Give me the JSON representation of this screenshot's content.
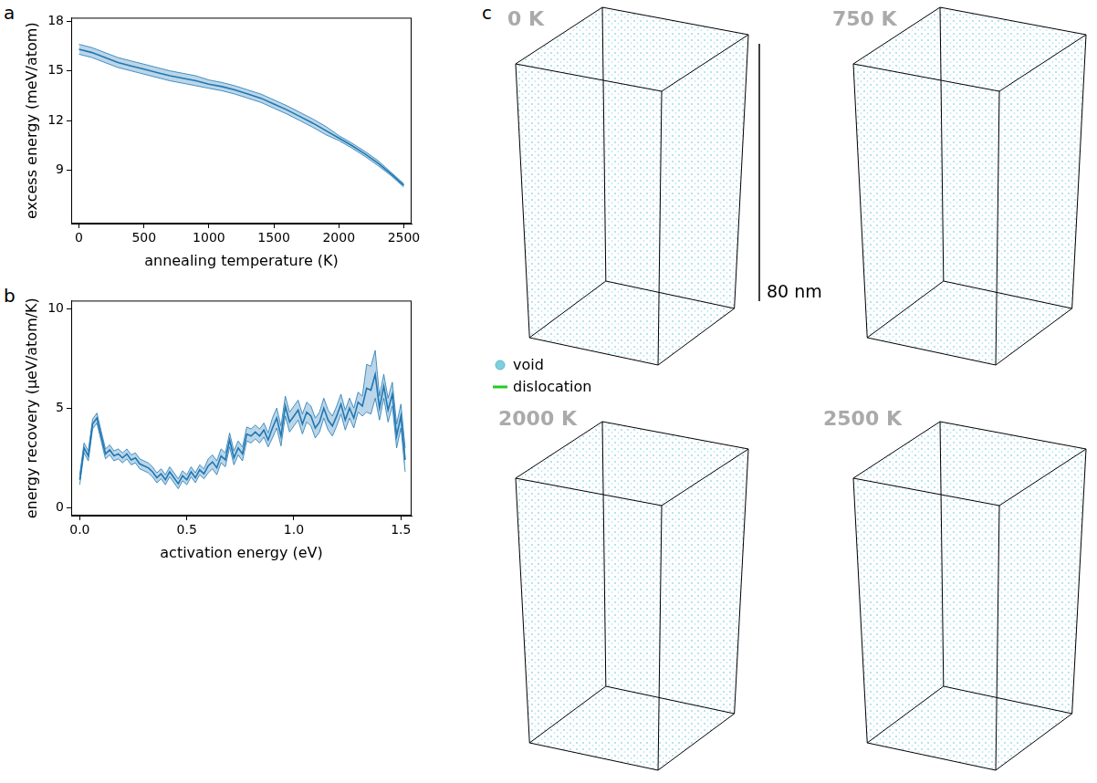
{
  "chart_data": [
    {
      "type": "line",
      "panel": "a",
      "x_label": "annealing temperature (K)",
      "y_label": "excess energy (meV/atom)",
      "x": [
        0,
        100,
        200,
        300,
        400,
        500,
        600,
        700,
        800,
        900,
        1000,
        1100,
        1200,
        1300,
        1400,
        1500,
        1600,
        1700,
        1800,
        1900,
        2000,
        2100,
        2200,
        2300,
        2400,
        2500
      ],
      "series": [
        {
          "color": "#1f77b4",
          "values": [
            16.3,
            16.1,
            15.8,
            15.5,
            15.3,
            15.1,
            14.9,
            14.7,
            14.55,
            14.4,
            14.2,
            14.05,
            13.85,
            13.6,
            13.35,
            13.0,
            12.65,
            12.25,
            11.85,
            11.4,
            10.95,
            10.5,
            10.0,
            9.45,
            8.8,
            8.1
          ],
          "lower": [
            16.0,
            15.8,
            15.5,
            15.2,
            15.0,
            14.8,
            14.6,
            14.4,
            14.25,
            14.1,
            13.95,
            13.8,
            13.6,
            13.35,
            13.1,
            12.75,
            12.4,
            12.0,
            11.6,
            11.15,
            10.8,
            10.35,
            9.85,
            9.3,
            8.7,
            8.0
          ],
          "upper": [
            16.6,
            16.4,
            16.1,
            15.8,
            15.6,
            15.4,
            15.2,
            15.0,
            14.85,
            14.7,
            14.45,
            14.3,
            14.1,
            13.85,
            13.6,
            13.25,
            12.9,
            12.5,
            12.1,
            11.65,
            11.1,
            10.65,
            10.15,
            9.6,
            8.9,
            8.2
          ]
        }
      ],
      "xlim": [
        -60,
        2560
      ],
      "xticks": [
        0,
        500,
        1000,
        1500,
        2000,
        2500
      ],
      "ylim": [
        5.8,
        18.2
      ],
      "yticks": [
        9,
        12,
        15,
        18
      ],
      "grid": false
    },
    {
      "type": "line",
      "panel": "b",
      "x_label": "activation energy (eV)",
      "y_label": "energy recovery (µeV/atom/K)",
      "x": [
        0.0,
        0.02,
        0.04,
        0.06,
        0.08,
        0.1,
        0.12,
        0.14,
        0.16,
        0.18,
        0.2,
        0.22,
        0.24,
        0.26,
        0.28,
        0.3,
        0.32,
        0.34,
        0.36,
        0.38,
        0.4,
        0.42,
        0.44,
        0.46,
        0.48,
        0.5,
        0.52,
        0.54,
        0.56,
        0.58,
        0.6,
        0.62,
        0.64,
        0.66,
        0.68,
        0.7,
        0.72,
        0.74,
        0.76,
        0.78,
        0.8,
        0.82,
        0.84,
        0.86,
        0.88,
        0.9,
        0.92,
        0.94,
        0.96,
        0.98,
        1.0,
        1.02,
        1.04,
        1.06,
        1.08,
        1.1,
        1.12,
        1.14,
        1.16,
        1.18,
        1.2,
        1.22,
        1.24,
        1.26,
        1.28,
        1.3,
        1.32,
        1.34,
        1.36,
        1.38,
        1.4,
        1.42,
        1.44,
        1.46,
        1.48,
        1.5,
        1.52
      ],
      "series": [
        {
          "color": "#1f77b4",
          "values": [
            1.4,
            3.0,
            2.6,
            4.2,
            4.5,
            3.6,
            2.7,
            2.9,
            2.6,
            2.7,
            2.5,
            2.7,
            2.4,
            2.5,
            2.2,
            2.1,
            2.0,
            1.8,
            1.5,
            1.7,
            1.4,
            1.8,
            1.5,
            1.2,
            1.6,
            1.4,
            1.8,
            1.5,
            1.9,
            1.7,
            2.1,
            2.3,
            2.0,
            2.6,
            2.4,
            3.4,
            2.5,
            3.0,
            2.7,
            3.7,
            3.6,
            3.8,
            3.6,
            3.9,
            3.4,
            4.0,
            4.5,
            3.6,
            5.1,
            4.3,
            4.6,
            4.9,
            4.2,
            4.8,
            4.6,
            4.0,
            4.3,
            5.0,
            4.4,
            4.1,
            4.6,
            5.2,
            4.4,
            5.0,
            4.5,
            5.3,
            5.1,
            6.0,
            5.9,
            6.7,
            5.0,
            6.1,
            4.9,
            5.7,
            3.6,
            4.6,
            2.4
          ],
          "lower": [
            1.15,
            2.75,
            2.35,
            3.95,
            4.25,
            3.35,
            2.45,
            2.65,
            2.35,
            2.45,
            2.25,
            2.45,
            2.15,
            2.25,
            1.95,
            1.85,
            1.75,
            1.55,
            1.25,
            1.45,
            1.15,
            1.55,
            1.25,
            0.95,
            1.35,
            1.15,
            1.55,
            1.25,
            1.65,
            1.45,
            1.75,
            1.95,
            1.65,
            2.25,
            2.05,
            3.05,
            2.15,
            2.65,
            2.35,
            3.35,
            3.25,
            3.45,
            3.25,
            3.55,
            3.05,
            3.5,
            4.0,
            3.1,
            4.6,
            3.8,
            4.1,
            4.4,
            3.7,
            4.3,
            4.1,
            3.5,
            3.8,
            4.5,
            3.9,
            3.6,
            4.1,
            4.7,
            3.9,
            4.5,
            4.0,
            4.8,
            4.6,
            4.8,
            4.7,
            5.5,
            4.4,
            5.5,
            4.3,
            5.1,
            3.0,
            4.0,
            1.8
          ],
          "upper": [
            1.65,
            3.25,
            2.85,
            4.45,
            4.75,
            3.85,
            2.95,
            3.15,
            2.85,
            2.95,
            2.75,
            2.95,
            2.65,
            2.75,
            2.45,
            2.35,
            2.25,
            2.05,
            1.75,
            1.95,
            1.65,
            2.05,
            1.75,
            1.45,
            1.85,
            1.65,
            2.05,
            1.75,
            2.15,
            1.95,
            2.45,
            2.65,
            2.35,
            2.95,
            2.75,
            3.75,
            2.85,
            3.35,
            3.05,
            4.05,
            3.95,
            4.15,
            3.95,
            4.25,
            3.75,
            4.5,
            5.0,
            4.1,
            5.6,
            4.8,
            5.1,
            5.4,
            4.7,
            5.3,
            5.1,
            4.5,
            4.8,
            5.5,
            4.9,
            4.6,
            5.1,
            5.7,
            4.9,
            5.5,
            5.0,
            5.8,
            5.6,
            7.2,
            7.1,
            7.9,
            5.6,
            6.7,
            5.5,
            6.3,
            4.2,
            5.2,
            3.0
          ]
        }
      ],
      "xlim": [
        -0.04,
        1.55
      ],
      "xticks": [
        {
          "value": 0,
          "label": "0.0"
        },
        0.5,
        {
          "value": 1,
          "label": "1.0"
        },
        1.5
      ],
      "ylim": [
        -0.4,
        10.4
      ],
      "yticks": [
        0,
        5,
        10
      ],
      "grid": false
    }
  ],
  "panel_c": {
    "panel": "c",
    "views": [
      "0 K",
      "750 K",
      "2000 K",
      "2500 K"
    ],
    "scale_bar": "80 nm",
    "key": [
      {
        "name": "void",
        "color": "#7ecfe0",
        "marker": "circle"
      },
      {
        "name": "dislocation",
        "color": "#22cc22",
        "line_style": "solid"
      }
    ]
  }
}
